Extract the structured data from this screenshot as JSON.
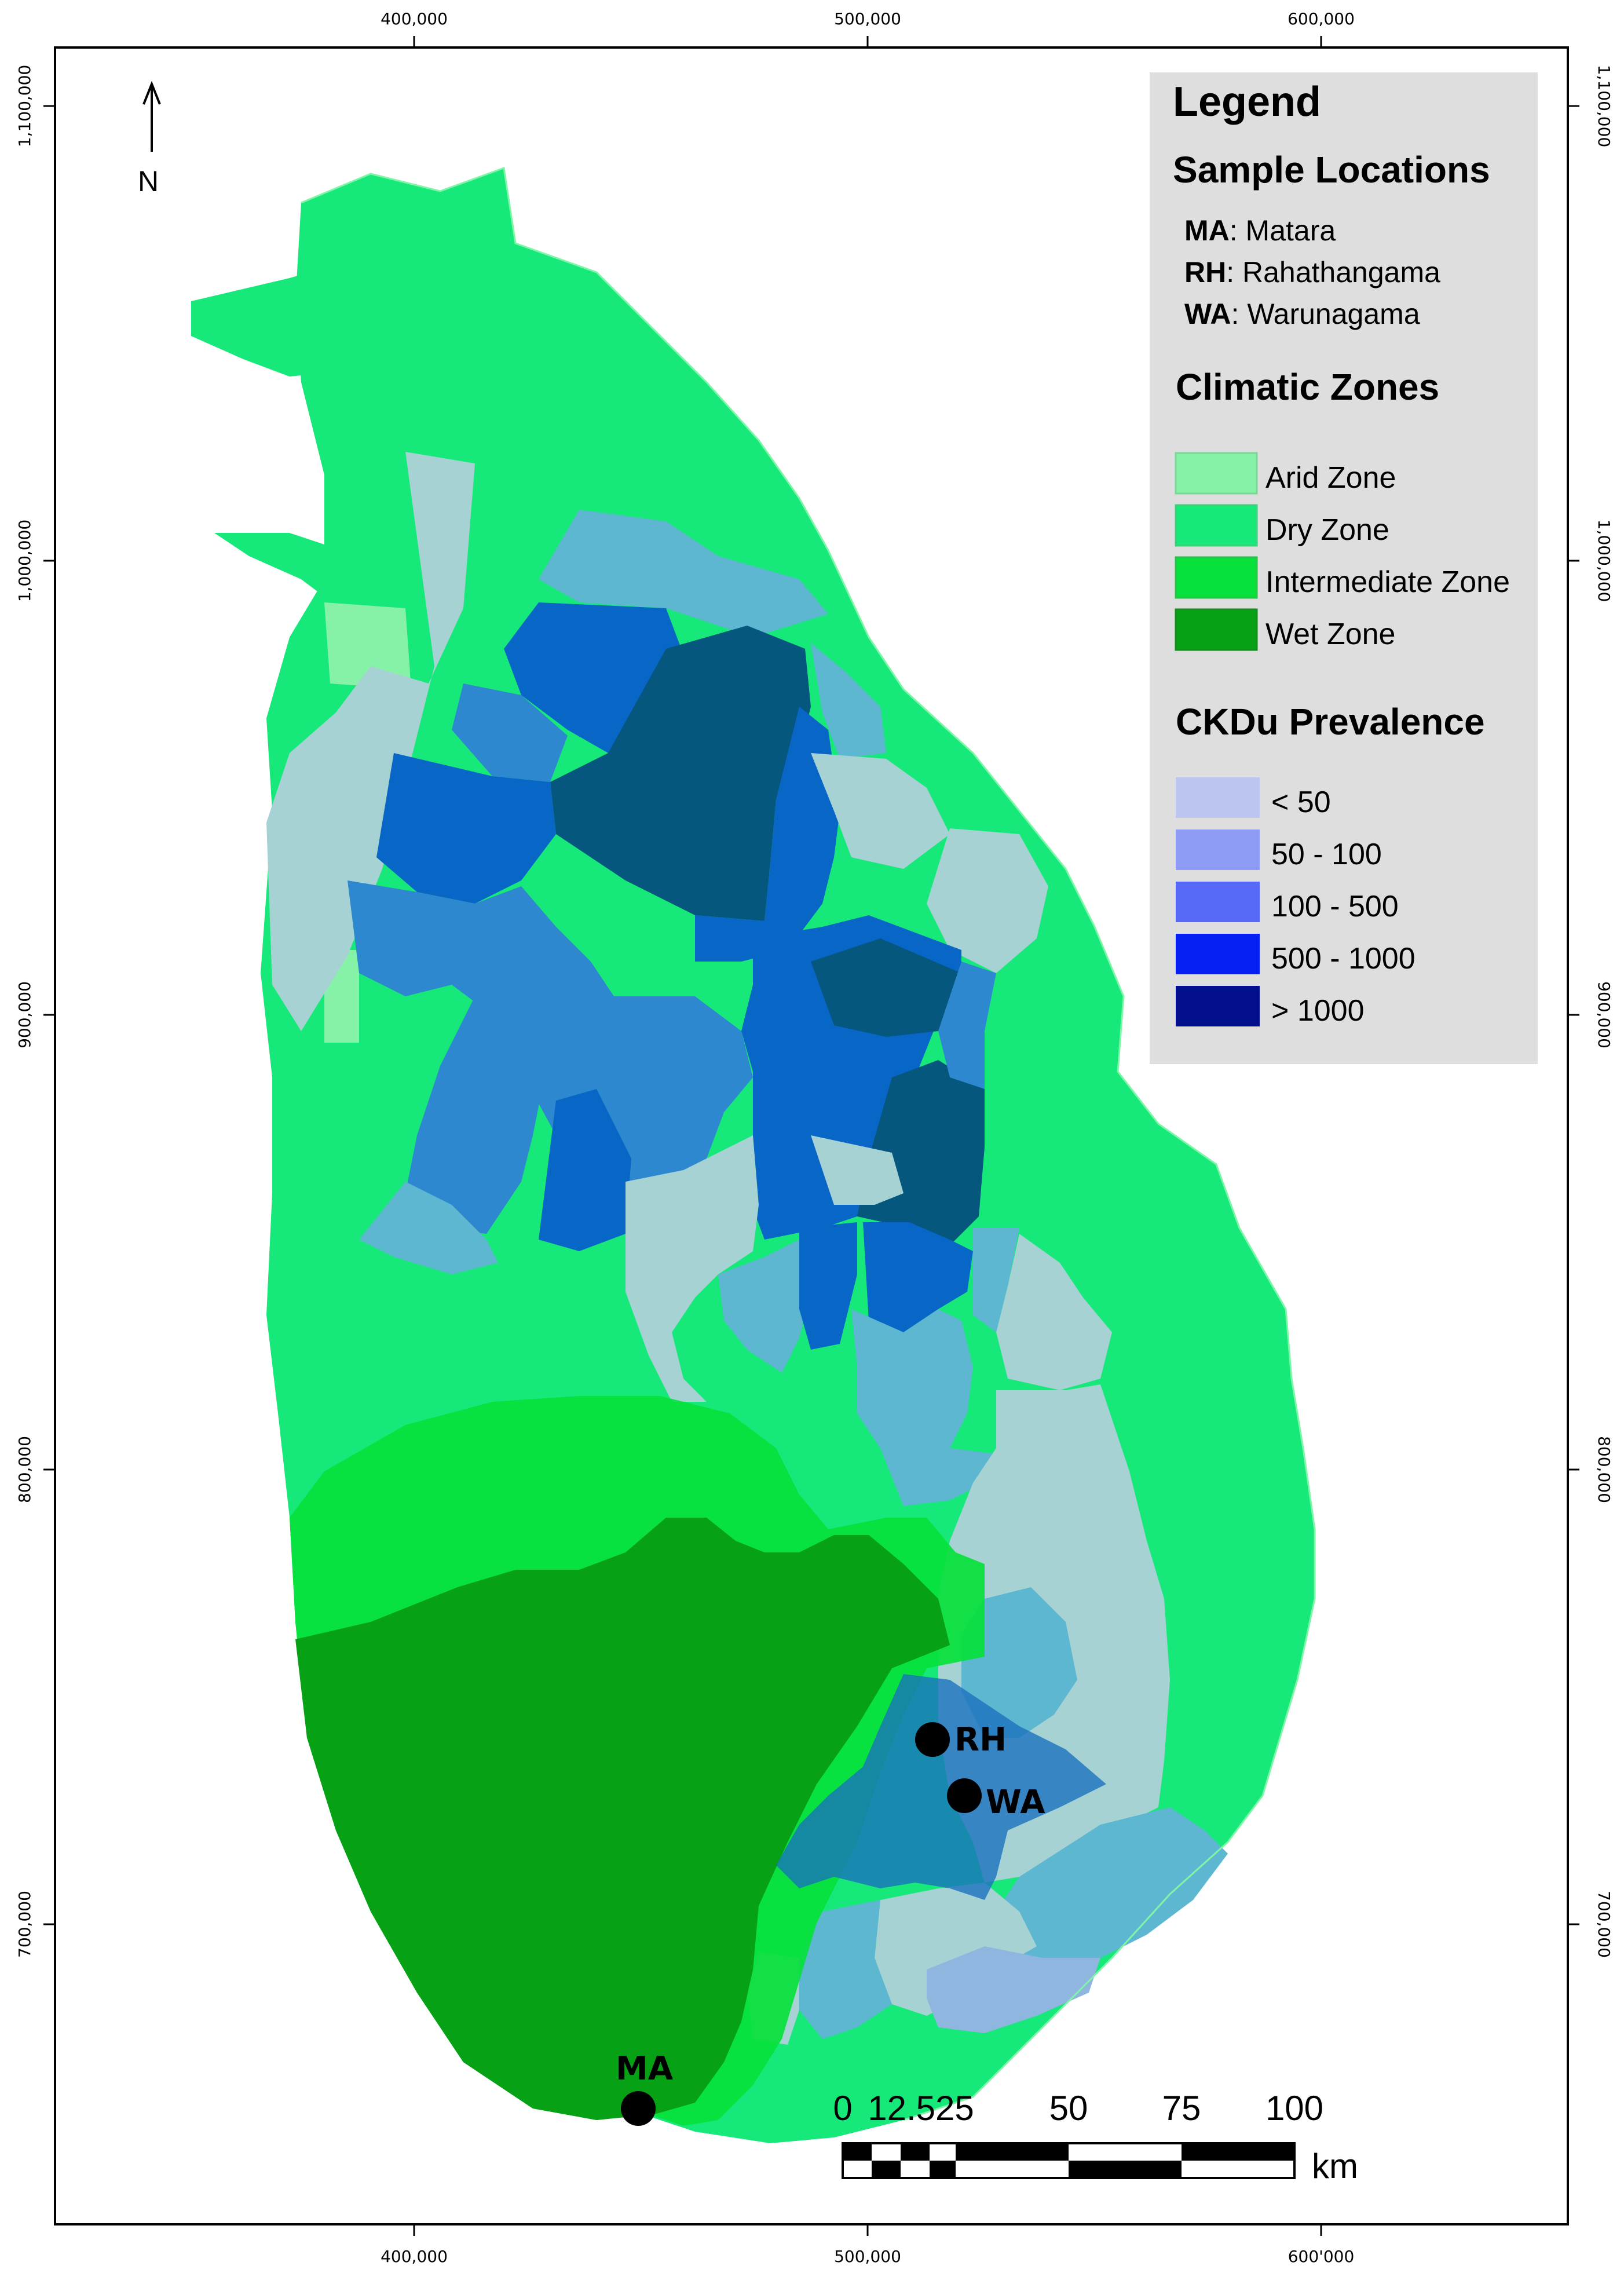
{
  "colors": {
    "arid": "#86f2a8",
    "dry": "#17e87a",
    "intermediate": "#07e13b",
    "wet": "#06a114",
    "prev_lt50": "#b8c8ea",
    "prev_50_100": "#5db7d0",
    "prev_100_500": "#2e88d0",
    "prev_500_1000": "#0866c6",
    "prev_gt1000": "#05577e",
    "legend_bg": "#dedede"
  },
  "axes": {
    "top_x": [
      "400,000",
      "500,000",
      "600,000"
    ],
    "bottom_x": [
      "400,000",
      "500,000",
      "600'000"
    ],
    "left_y": [
      "1,100,000",
      "1,000,000",
      "900,000",
      "800,000",
      "700,000"
    ],
    "right_y": [
      "1,100,000",
      "1,000,000",
      "900,000",
      "800,000",
      "700,000"
    ]
  },
  "north_arrow": {
    "label": "N",
    "icon": "north-arrow-icon"
  },
  "legend": {
    "title": "Legend",
    "sample_heading": "Sample Locations",
    "samples": [
      {
        "code": "MA",
        "name": ": Matara"
      },
      {
        "code": "RH",
        "name": ": Rahathangama"
      },
      {
        "code": "WA",
        "name": ": Warunagama"
      }
    ],
    "zones_heading": "Climatic Zones",
    "zones": [
      {
        "label": "Arid Zone",
        "color": "#86f2a8"
      },
      {
        "label": "Dry Zone",
        "color": "#17e87a"
      },
      {
        "label": "Intermediate Zone",
        "color": "#07e13b"
      },
      {
        "label": "Wet Zone",
        "color": "#06a114"
      }
    ],
    "prevalence_heading": "CKDu Prevalence",
    "prevalence": [
      {
        "label": "< 50",
        "color": "#bcc4f0"
      },
      {
        "label": "50 - 100",
        "color": "#8e9cf5"
      },
      {
        "label": "100 - 500",
        "color": "#5868f6"
      },
      {
        "label": "500 - 1000",
        "color": "#0620f4"
      },
      {
        "label": "> 1000",
        "color": "#020f8c"
      }
    ]
  },
  "sites": [
    {
      "code": "RH"
    },
    {
      "code": "WA"
    },
    {
      "code": "MA"
    }
  ],
  "scale_bar": {
    "labels": [
      "0",
      "12.525",
      "50",
      "75",
      "100"
    ],
    "unit": "km"
  }
}
